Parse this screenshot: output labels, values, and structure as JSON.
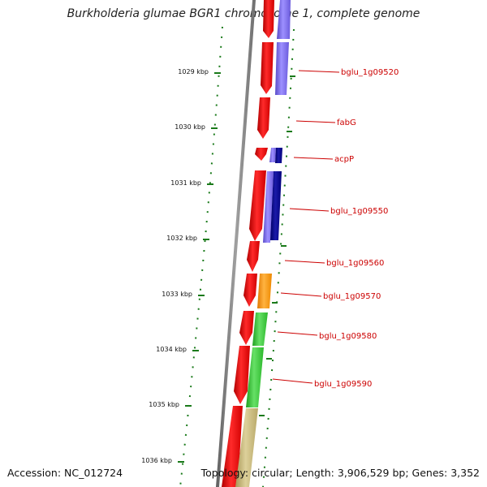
{
  "title": "Burkholderia glumae BGR1 chromosome 1, complete genome",
  "footer": {
    "accession": "Accession: NC_012724",
    "stats": "Topology: circular; Length: 3,906,529 bp; Genes: 3,352"
  },
  "ticks": [
    {
      "label": "1029 kbp"
    },
    {
      "label": "1030 kbp"
    },
    {
      "label": "1031 kbp"
    },
    {
      "label": "1032 kbp"
    },
    {
      "label": "1033 kbp"
    },
    {
      "label": "1034 kbp"
    },
    {
      "label": "1035 kbp"
    },
    {
      "label": "1036 kbp"
    }
  ],
  "genes": [
    {
      "label": "bglu_1g09520"
    },
    {
      "label": "fabG"
    },
    {
      "label": "acpP"
    },
    {
      "label": "bglu_1g09550"
    },
    {
      "label": "bglu_1g09560"
    },
    {
      "label": "bglu_1g09570"
    },
    {
      "label": "bglu_1g09580"
    },
    {
      "label": "bglu_1g09590"
    }
  ],
  "colors": {
    "backbone": "#808080",
    "forward_cds": "#ff0000",
    "blue_cog": "#7b68ee",
    "dark_blue_cog": "#00008b",
    "orange_cog": "#ff9900",
    "green_cog": "#33cc33",
    "tan_cog": "#c8b878",
    "tick": "#1a7a1a",
    "label": "#cc0000"
  }
}
